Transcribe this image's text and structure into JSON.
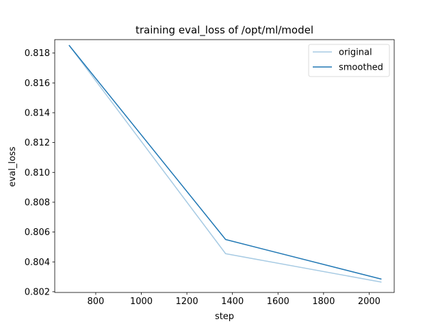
{
  "chart_data": {
    "type": "line",
    "title": "training eval_loss of /opt/ml/model",
    "xlabel": "step",
    "ylabel": "eval_loss",
    "xlim": [
      620,
      2110
    ],
    "ylim": [
      0.80195,
      0.8189
    ],
    "xticks": [
      800,
      1000,
      1200,
      1400,
      1600,
      1800,
      2000
    ],
    "yticks": [
      0.802,
      0.804,
      0.806,
      0.808,
      0.81,
      0.812,
      0.814,
      0.816,
      0.818
    ],
    "x": [
      684,
      1370,
      2052
    ],
    "series": [
      {
        "name": "original",
        "color": "#a6cae3",
        "values": [
          0.8185,
          0.80455,
          0.80265
        ]
      },
      {
        "name": "smoothed",
        "color": "#1f77b4",
        "values": [
          0.8185,
          0.8055,
          0.80285
        ]
      }
    ],
    "legend": "top-right",
    "grid": false
  }
}
